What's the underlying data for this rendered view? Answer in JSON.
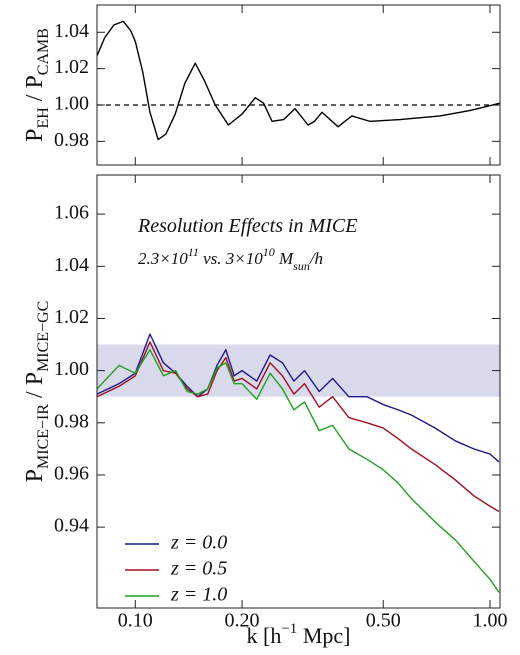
{
  "chart_data": [
    {
      "type": "line",
      "log_x": true,
      "ylabel": [
        {
          "text": "P",
          "shift": "none"
        },
        {
          "text": "EH",
          "shift": "sub"
        },
        {
          "text": " / P",
          "shift": "none"
        },
        {
          "text": "CAMB",
          "shift": "sub"
        }
      ],
      "xlim": [
        0.078,
        1.067
      ],
      "xticks": [
        0.1,
        0.2,
        0.5,
        1
      ],
      "ylim": [
        0.967,
        1.055
      ],
      "yticks": [
        0.98,
        {
          "value": 1,
          "label": "1.00"
        },
        1.02,
        1.04
      ],
      "hline": 1,
      "x": [
        0.078,
        0.082,
        0.087,
        0.0925,
        0.097,
        0.1,
        0.105,
        0.11,
        0.116,
        0.122,
        0.1296,
        0.138,
        0.1476,
        0.157,
        0.168,
        0.183,
        0.2,
        0.218,
        0.23,
        0.243,
        0.262,
        0.282,
        0.307,
        0.32,
        0.336,
        0.373,
        0.39,
        0.408,
        0.459,
        0.558,
        0.723,
        0.88,
        1.067
      ],
      "series": [
        {
          "name": null,
          "color": "#000000",
          "values": [
            1.027,
            1.037,
            1.044,
            1.046,
            1.041,
            1.035,
            1.018,
            0.996,
            0.981,
            0.984,
            0.995,
            1.012,
            1.023,
            1.013,
            1.0,
            0.989,
            0.995,
            1.004,
            1.001,
            0.991,
            0.992,
            0.998,
            0.989,
            0.991,
            0.996,
            0.988,
            0.991,
            0.994,
            0.991,
            0.992,
            0.994,
            0.997,
            1.001
          ]
        }
      ]
    },
    {
      "type": "line",
      "log_x": true,
      "ylabel": [
        {
          "text": "P",
          "shift": "none"
        },
        {
          "text": "MICE−IR",
          "shift": "sub"
        },
        {
          "text": " / P",
          "shift": "none"
        },
        {
          "text": "MICE−GC",
          "shift": "sub"
        }
      ],
      "xlabel": [
        {
          "text": "k [h",
          "shift": "none"
        },
        {
          "text": "−1",
          "shift": "super"
        },
        {
          "text": " Mpc]",
          "shift": "none"
        }
      ],
      "annotations": [
        [
          {
            "text": "Resolution Effects in MICE",
            "shift": "none"
          }
        ],
        [
          {
            "text": "2.3×10",
            "shift": "none"
          },
          {
            "text": "11",
            "shift": "super"
          },
          {
            "text": " vs. 3×10",
            "shift": "none"
          },
          {
            "text": "10",
            "shift": "super"
          },
          {
            "text": " M",
            "shift": "none"
          },
          {
            "text": "sun",
            "shift": "sub"
          },
          {
            "text": "/h",
            "shift": "none"
          }
        ]
      ],
      "xlim": [
        0.078,
        1.067
      ],
      "xticks": [
        {
          "value": 0.1,
          "label": "0.10"
        },
        {
          "value": 0.2,
          "label": "0.20"
        },
        {
          "value": 0.5,
          "label": "0.50"
        },
        {
          "value": 1,
          "label": "1.00"
        }
      ],
      "ylim": [
        0.909,
        1.075
      ],
      "yticks": [
        0.94,
        0.96,
        0.98,
        {
          "value": 1,
          "label": "1.00"
        },
        1.02,
        1.04,
        1.06
      ],
      "band": [
        0.99,
        1.01
      ],
      "band_color": "#d9d9ec",
      "legend": "lower-left",
      "x": [
        0.078,
        0.09,
        0.1,
        0.11,
        0.12,
        0.13,
        0.14,
        0.15,
        0.16,
        0.17,
        0.18,
        0.19,
        0.2,
        0.22,
        0.24,
        0.26,
        0.28,
        0.3,
        0.33,
        0.36,
        0.4,
        0.45,
        0.5,
        0.55,
        0.6,
        0.7,
        0.8,
        0.9,
        1.0,
        1.06
      ],
      "series": [
        {
          "name": "z = 0.0",
          "color": "#1a1a8c",
          "values": [
            0.991,
            0.995,
            0.999,
            1.014,
            1.003,
            0.999,
            0.994,
            0.99,
            0.993,
            1.002,
            1.008,
            0.998,
            1.0,
            0.996,
            1.006,
            1.003,
            0.996,
            1.0,
            0.992,
            0.997,
            0.99,
            0.99,
            0.987,
            0.985,
            0.983,
            0.978,
            0.973,
            0.97,
            0.968,
            0.965
          ]
        },
        {
          "name": "z = 0.5",
          "color": "#a01020",
          "values": [
            0.99,
            0.994,
            0.998,
            1.011,
            1.0,
            0.999,
            0.993,
            0.99,
            0.991,
            1.0,
            1.005,
            0.996,
            0.997,
            0.993,
            1.003,
            0.998,
            0.991,
            0.995,
            0.986,
            0.99,
            0.982,
            0.98,
            0.978,
            0.974,
            0.97,
            0.964,
            0.958,
            0.952,
            0.948,
            0.946
          ]
        },
        {
          "name": "z = 1.0",
          "color": "#20a020",
          "values": [
            0.993,
            1.002,
            0.999,
            1.008,
            0.998,
            1.0,
            0.992,
            0.991,
            0.993,
            1.001,
            1.003,
            0.995,
            0.995,
            0.989,
            0.999,
            0.993,
            0.985,
            0.988,
            0.977,
            0.979,
            0.97,
            0.966,
            0.962,
            0.957,
            0.951,
            0.942,
            0.935,
            0.927,
            0.92,
            0.915
          ]
        }
      ]
    }
  ]
}
